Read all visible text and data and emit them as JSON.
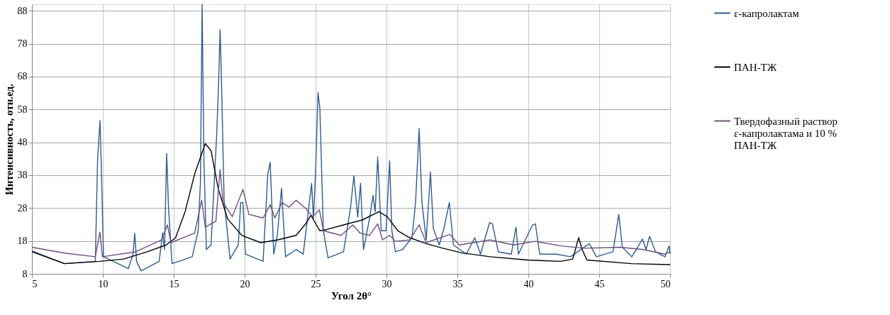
{
  "chart_data": {
    "type": "line",
    "xlabel": "Угол 2θ°",
    "ylabel": "Интенсивность, отн.ед.",
    "xlim": [
      5,
      50
    ],
    "xticks": [
      5,
      10,
      15,
      20,
      25,
      30,
      35,
      40,
      45,
      50
    ],
    "ylim": [
      8,
      90
    ],
    "yticks": [
      8,
      18,
      28,
      38,
      48,
      58,
      68,
      78,
      88
    ],
    "grid": true,
    "legend": "right",
    "line_style": "solid",
    "marker": "none",
    "series": [
      {
        "name": "ε-капролактам",
        "color": "#2f5c8f",
        "x": [
          5,
          7.3,
          9.47,
          9.63,
          9.8,
          9.88,
          10.05,
          11.8,
          12.13,
          12.25,
          12.38,
          12.7,
          13.97,
          14.22,
          14.35,
          14.5,
          14.63,
          14.88,
          16.3,
          16.72,
          16.88,
          17.0,
          17.13,
          17.3,
          17.63,
          18.02,
          18.15,
          18.27,
          18.38,
          18.55,
          18.97,
          19.55,
          19.72,
          19.88,
          20.05,
          21.3,
          21.63,
          21.8,
          22.05,
          22.3,
          22.6,
          22.88,
          23.63,
          24.13,
          24.72,
          24.85,
          25.0,
          25.17,
          25.3,
          25.55,
          25.88,
          26.97,
          27.47,
          27.7,
          27.97,
          28.17,
          28.38,
          28.8,
          29.05,
          29.2,
          29.38,
          29.63,
          29.97,
          30.22,
          30.38,
          30.63,
          31.13,
          31.8,
          32.05,
          32.3,
          32.5,
          32.8,
          33.1,
          33.3,
          33.72,
          34.05,
          34.43,
          34.72,
          35.63,
          36.22,
          36.63,
          37.27,
          37.47,
          37.88,
          38.8,
          39.13,
          39.3,
          40.3,
          40.5,
          40.8,
          41.97,
          42.97,
          44.3,
          44.8,
          45.97,
          46.38,
          46.63,
          47.3,
          48.05,
          48.3,
          48.55,
          48.97,
          49.63,
          49.93,
          50
        ],
        "values": [
          15.0,
          11.1,
          11.8,
          42.6,
          54.6,
          42.6,
          13.2,
          9.6,
          14.0,
          20.3,
          11.8,
          8.9,
          11.8,
          20.4,
          15.4,
          44.6,
          28.3,
          11.1,
          13.2,
          21.1,
          35.5,
          89.9,
          42.6,
          15.4,
          16.8,
          49.8,
          64.1,
          82.3,
          64.1,
          30.4,
          12.5,
          16.8,
          29.7,
          29.7,
          14.0,
          11.8,
          38.3,
          41.9,
          14.0,
          19.7,
          34.0,
          13.2,
          15.4,
          14.0,
          35.5,
          24.7,
          39.0,
          63.1,
          58.4,
          21.1,
          12.9,
          14.7,
          28.3,
          37.9,
          25.3,
          35.5,
          15.4,
          24.7,
          31.9,
          26.9,
          43.5,
          21.1,
          21.1,
          42.4,
          21.1,
          14.7,
          15.4,
          19.0,
          29.7,
          52.2,
          29.7,
          18.3,
          39.0,
          21.8,
          16.8,
          21.8,
          29.7,
          16.8,
          14.0,
          19.0,
          14.0,
          23.6,
          23.2,
          14.7,
          14.0,
          22.2,
          14.0,
          22.9,
          23.2,
          14.0,
          14.0,
          13.2,
          17.2,
          13.2,
          14.7,
          26.1,
          16.1,
          13.2,
          18.6,
          15.4,
          19.4,
          14.7,
          13.2,
          16.5,
          14.0
        ]
      },
      {
        "name": "ПАН-ТЖ",
        "color": "#000000",
        "x": [
          5,
          7.3,
          9.8,
          11.47,
          13.13,
          14.47,
          15.13,
          15.8,
          16.47,
          17.22,
          17.63,
          18.13,
          18.8,
          19.8,
          21.13,
          22.3,
          23.63,
          24.3,
          24.67,
          25.3,
          25.8,
          26.97,
          28.3,
          29.47,
          30.05,
          30.8,
          31.63,
          32.8,
          33.97,
          35.3,
          37.3,
          39.97,
          42.3,
          43.13,
          43.55,
          43.8,
          44.13,
          47.3,
          50
        ],
        "values": [
          14.7,
          11.1,
          11.8,
          12.5,
          14.7,
          16.8,
          19.0,
          26.9,
          38.3,
          47.6,
          45.5,
          34.0,
          24.7,
          19.7,
          17.5,
          18.3,
          19.7,
          23.2,
          25.8,
          21.1,
          21.5,
          22.9,
          24.4,
          26.9,
          25.4,
          21.1,
          19.0,
          17.2,
          15.8,
          14.4,
          13.2,
          12.2,
          11.8,
          12.5,
          19.0,
          15.4,
          12.2,
          11.1,
          10.8
        ]
      },
      {
        "name": "Твердофазный раствор ε-капролактама и 10 % ПАН-ТЖ",
        "color": "#6e4f7f",
        "x": [
          5,
          7.3,
          9.47,
          9.8,
          9.97,
          12.3,
          14.13,
          14.55,
          14.8,
          16.47,
          16.97,
          17.22,
          17.97,
          18.27,
          18.47,
          19.13,
          19.88,
          20.3,
          21.3,
          21.8,
          22.13,
          22.63,
          23.13,
          23.63,
          24.3,
          24.8,
          25.27,
          25.55,
          26.8,
          27.63,
          28.13,
          28.8,
          29.38,
          29.72,
          30.22,
          30.63,
          31.63,
          32.3,
          32.8,
          34.47,
          35.13,
          37.3,
          38.97,
          40.47,
          42.3,
          43.97,
          46.47,
          48.13,
          49.63,
          50
        ],
        "values": [
          16.1,
          14.3,
          13.2,
          20.7,
          13.2,
          14.7,
          18.3,
          22.9,
          17.5,
          20.4,
          30.4,
          22.2,
          24.0,
          39.7,
          29.7,
          25.4,
          33.7,
          26.1,
          25.0,
          29.0,
          25.0,
          29.7,
          28.3,
          30.4,
          27.9,
          25.4,
          27.5,
          21.1,
          19.7,
          22.9,
          20.4,
          19.7,
          23.2,
          18.3,
          19.7,
          17.9,
          18.3,
          22.9,
          17.5,
          20.0,
          16.8,
          18.3,
          16.8,
          17.9,
          16.5,
          15.8,
          16.1,
          15.4,
          14.0,
          14.7
        ]
      }
    ]
  }
}
